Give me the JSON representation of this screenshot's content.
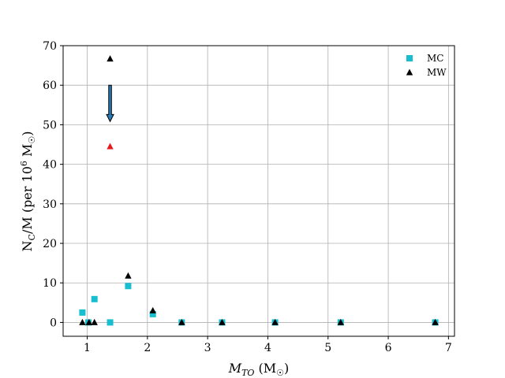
{
  "chart_data": {
    "type": "scatter",
    "xlabel": "M_TO (M☉)",
    "ylabel": "N_C/M  (per 10^6 M☉)",
    "xlim": [
      0.6,
      7.1
    ],
    "ylim": [
      -3.5,
      70
    ],
    "xticks": [
      1,
      2,
      3,
      4,
      5,
      6,
      7
    ],
    "yticks": [
      0,
      10,
      20,
      30,
      40,
      50,
      60,
      70
    ],
    "grid": true,
    "legend_position": "top-right",
    "series": [
      {
        "name": "MC",
        "marker": "square",
        "color": "#17becf",
        "points": [
          {
            "x": 0.92,
            "y": 2.5
          },
          {
            "x": 1.02,
            "y": 0.0
          },
          {
            "x": 1.12,
            "y": 5.9
          },
          {
            "x": 1.38,
            "y": 0.0
          },
          {
            "x": 1.68,
            "y": 9.2
          },
          {
            "x": 2.09,
            "y": 2.1
          },
          {
            "x": 2.57,
            "y": 0.0
          },
          {
            "x": 3.24,
            "y": 0.0
          },
          {
            "x": 4.12,
            "y": 0.0
          },
          {
            "x": 5.21,
            "y": 0.0
          },
          {
            "x": 6.78,
            "y": 0.0
          }
        ]
      },
      {
        "name": "MW",
        "marker": "triangle",
        "color": "#000000",
        "points": [
          {
            "x": 0.92,
            "y": 0.0
          },
          {
            "x": 1.03,
            "y": 0.0
          },
          {
            "x": 1.12,
            "y": 0.0
          },
          {
            "x": 1.38,
            "y": 66.7
          },
          {
            "x": 1.68,
            "y": 11.8
          },
          {
            "x": 2.09,
            "y": 3.0
          },
          {
            "x": 2.57,
            "y": 0.0
          },
          {
            "x": 3.24,
            "y": 0.0
          },
          {
            "x": 4.12,
            "y": 0.0
          },
          {
            "x": 5.21,
            "y": 0.0
          },
          {
            "x": 6.78,
            "y": 0.0
          }
        ]
      }
    ],
    "extra_markers": [
      {
        "x": 1.38,
        "y": 44.5,
        "marker": "triangle",
        "color": "#e41a1c"
      }
    ],
    "arrows": [
      {
        "x": 1.38,
        "y_from": 60.0,
        "y_to": 50.8,
        "color": "#1f4e79"
      }
    ]
  }
}
